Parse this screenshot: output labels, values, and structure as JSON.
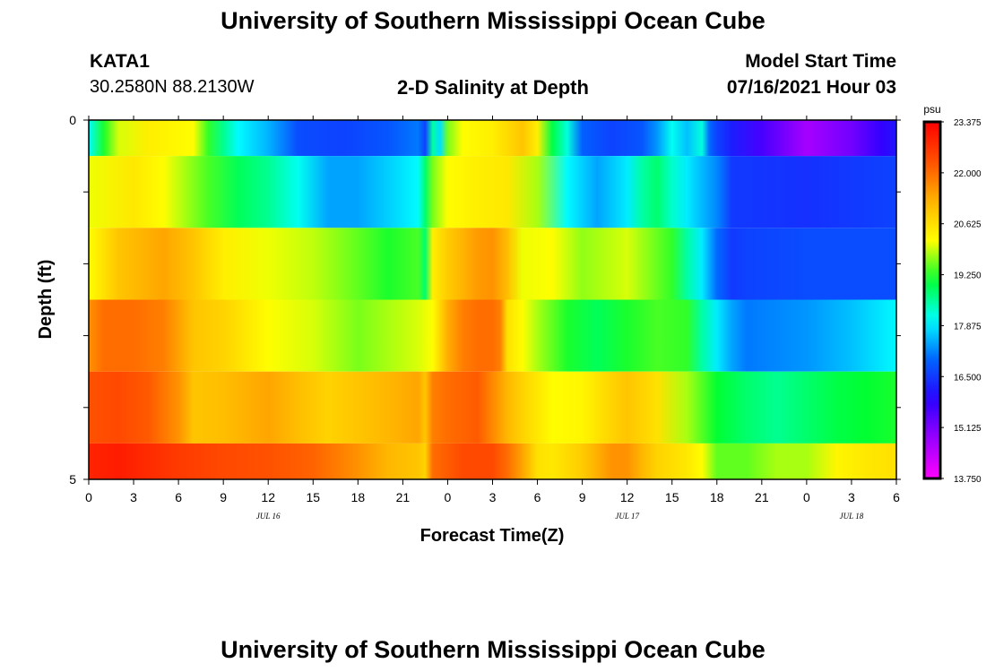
{
  "header": {
    "title": "University of Southern Mississippi Ocean Cube",
    "station": "KATA1",
    "coords": "30.2580N  88.2130W",
    "plot_title": "2-D Salinity at Depth",
    "model_start_label": "Model Start Time",
    "model_start_value": "07/16/2021 Hour 03"
  },
  "footer": {
    "title": "University of Southern Mississippi Ocean Cube"
  },
  "chart_data": {
    "type": "heatmap",
    "title": "2-D Salinity at Depth",
    "xlabel": "Forecast Time(Z)",
    "ylabel": "Depth (ft)",
    "x_hours": [
      0,
      54
    ],
    "x_tick_labels": [
      "0",
      "3",
      "6",
      "9",
      "12",
      "15",
      "18",
      "21",
      "0",
      "3",
      "6",
      "9",
      "12",
      "15",
      "18",
      "21",
      "0",
      "3",
      "6"
    ],
    "date_labels": [
      {
        "label": "JUL 16",
        "hour": 12
      },
      {
        "label": "JUL 17",
        "hour": 36
      },
      {
        "label": "JUL 18",
        "hour": 51
      }
    ],
    "y_tick_labels": [
      "0",
      "5"
    ],
    "ylim": [
      0,
      5
    ],
    "colorbar": {
      "unit": "psu",
      "min": 13.75,
      "max": 23.375,
      "tick_labels": [
        "23.375",
        "22.000",
        "20.625",
        "19.250",
        "17.875",
        "16.500",
        "15.125",
        "13.750"
      ],
      "colors": [
        "#ff00ff",
        "#9b00ff",
        "#2800ff",
        "#0064ff",
        "#00ffff",
        "#00ff32",
        "#ffff00",
        "#ffb400",
        "#ff5000",
        "#ff0000"
      ]
    },
    "layers": [
      {
        "depth_top": 0.0,
        "depth_bottom": 0.5,
        "hours": [
          0,
          1,
          2,
          4,
          7,
          8,
          9,
          10,
          12,
          14,
          17,
          20,
          22,
          22.5,
          23,
          23.5,
          24,
          25,
          27,
          29,
          30,
          31,
          32,
          33,
          35,
          37,
          38,
          39,
          40,
          41,
          41.5,
          42,
          43,
          45,
          48,
          51,
          53,
          54
        ],
        "salinity": [
          18.0,
          19.2,
          20.0,
          20.4,
          20.2,
          19.3,
          18.6,
          18.0,
          17.5,
          16.7,
          16.6,
          16.8,
          17.1,
          16.6,
          18.5,
          17.8,
          19.6,
          20.2,
          20.4,
          21.0,
          20.4,
          19.0,
          18.2,
          16.9,
          16.6,
          16.8,
          17.3,
          18.1,
          17.6,
          18.2,
          17.0,
          16.6,
          16.2,
          15.6,
          14.7,
          15.2,
          15.8,
          16.1
        ]
      },
      {
        "depth_top": 0.5,
        "depth_bottom": 1.5,
        "hours": [
          0,
          3,
          5,
          8,
          10,
          12,
          14,
          16,
          18,
          20,
          22,
          22.5,
          23,
          24,
          26,
          28,
          30,
          32,
          34,
          36,
          37,
          38,
          39,
          40,
          42,
          43,
          48,
          54
        ],
        "salinity": [
          20.1,
          20.5,
          20.2,
          19.4,
          18.9,
          18.6,
          18.1,
          17.4,
          17.4,
          17.7,
          18.0,
          18.8,
          19.6,
          20.2,
          20.4,
          20.5,
          19.8,
          18.0,
          17.4,
          17.9,
          18.5,
          18.8,
          18.3,
          17.9,
          17.2,
          16.5,
          16.4,
          16.6
        ]
      },
      {
        "depth_top": 1.5,
        "depth_bottom": 2.5,
        "hours": [
          0,
          2,
          5,
          7,
          9,
          12,
          15,
          18,
          20,
          22,
          22.5,
          23,
          24,
          26,
          27,
          28,
          29,
          31,
          33,
          36,
          39,
          40,
          41,
          42,
          43,
          44,
          48,
          54
        ],
        "salinity": [
          20.2,
          21.0,
          21.4,
          21.0,
          20.4,
          20.1,
          19.9,
          19.5,
          19.2,
          19.4,
          18.8,
          20.4,
          20.9,
          21.5,
          21.6,
          21.1,
          20.1,
          20.2,
          19.7,
          20.0,
          19.3,
          18.5,
          17.9,
          17.0,
          16.5,
          16.6,
          16.7,
          16.7
        ]
      },
      {
        "depth_top": 2.5,
        "depth_bottom": 3.5,
        "hours": [
          0,
          1,
          3,
          5,
          7,
          9,
          12,
          15,
          18,
          20,
          22,
          23,
          24,
          25,
          26,
          27,
          27.5,
          28,
          29,
          30,
          32,
          34,
          36,
          38,
          40,
          41,
          42,
          43,
          44,
          48,
          51,
          54
        ],
        "salinity": [
          21.6,
          22.0,
          22.0,
          21.8,
          21.0,
          20.8,
          20.2,
          20.0,
          19.6,
          19.8,
          20.0,
          20.2,
          21.3,
          21.8,
          22.0,
          22.0,
          21.8,
          20.6,
          20.2,
          19.8,
          19.2,
          18.9,
          19.2,
          19.4,
          19.3,
          18.5,
          17.9,
          17.4,
          17.1,
          17.3,
          17.6,
          18.0
        ]
      },
      {
        "depth_top": 3.5,
        "depth_bottom": 4.5,
        "hours": [
          0,
          2,
          4,
          6,
          7,
          9,
          12,
          14,
          16,
          18,
          20,
          22,
          22.5,
          23,
          24,
          26,
          28,
          29,
          31,
          33,
          35,
          36,
          38,
          40,
          42,
          44,
          46,
          48,
          50,
          52,
          54
        ],
        "salinity": [
          22.3,
          22.4,
          22.2,
          21.6,
          21.0,
          21.1,
          21.4,
          21.1,
          20.8,
          21.0,
          21.2,
          21.4,
          21.0,
          21.8,
          22.0,
          22.2,
          21.2,
          20.8,
          20.2,
          20.3,
          20.8,
          21.0,
          20.6,
          19.8,
          19.1,
          18.8,
          18.6,
          18.8,
          19.0,
          19.1,
          19.2
        ]
      },
      {
        "depth_top": 4.5,
        "depth_bottom": 5.0,
        "hours": [
          0,
          2,
          4,
          6,
          9,
          12,
          15,
          18,
          20,
          22,
          22.5,
          23,
          25,
          27,
          28,
          29,
          30,
          31,
          33,
          35,
          36,
          37,
          38,
          40,
          41,
          42,
          44,
          46,
          48,
          50,
          52,
          54
        ],
        "salinity": [
          22.9,
          23.0,
          22.8,
          22.6,
          22.4,
          22.3,
          22.1,
          21.6,
          21.2,
          21.0,
          20.8,
          22.0,
          22.4,
          22.4,
          22.0,
          21.4,
          20.6,
          20.5,
          20.9,
          21.6,
          21.6,
          21.2,
          20.8,
          20.5,
          20.2,
          19.5,
          19.5,
          19.8,
          19.8,
          20.3,
          20.5,
          20.6
        ]
      }
    ]
  }
}
